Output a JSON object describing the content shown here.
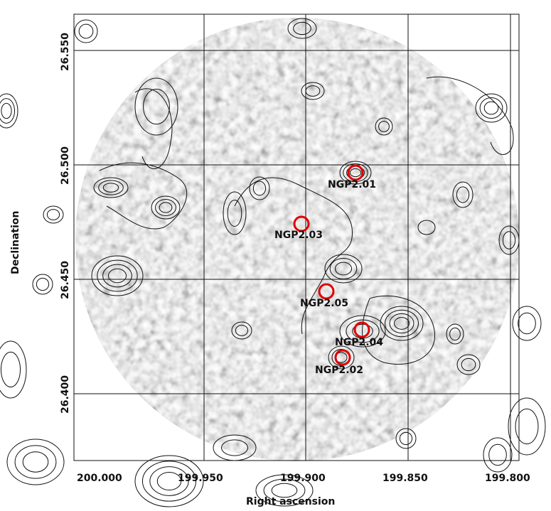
{
  "figure": {
    "xlabel": "Right ascension",
    "ylabel": "Declination",
    "x_ticks": [
      "200.000",
      "199.950",
      "199.900",
      "199.850",
      "199.800"
    ],
    "y_ticks": [
      "26.550",
      "26.500",
      "26.450",
      "26.400"
    ]
  },
  "sources": [
    {
      "label": "NGP2.01",
      "ra": 199.873,
      "dec": 26.496
    },
    {
      "label": "NGP2.02",
      "ra": 199.88,
      "dec": 26.416
    },
    {
      "label": "NGP2.03",
      "ra": 199.898,
      "dec": 26.474
    },
    {
      "label": "NGP2.04",
      "ra": 199.872,
      "dec": 26.427
    },
    {
      "label": "NGP2.05",
      "ra": 199.892,
      "dec": 26.446
    }
  ],
  "colors": {
    "marker": "#e00000",
    "contour": "#111111",
    "background": "#ffffff"
  }
}
